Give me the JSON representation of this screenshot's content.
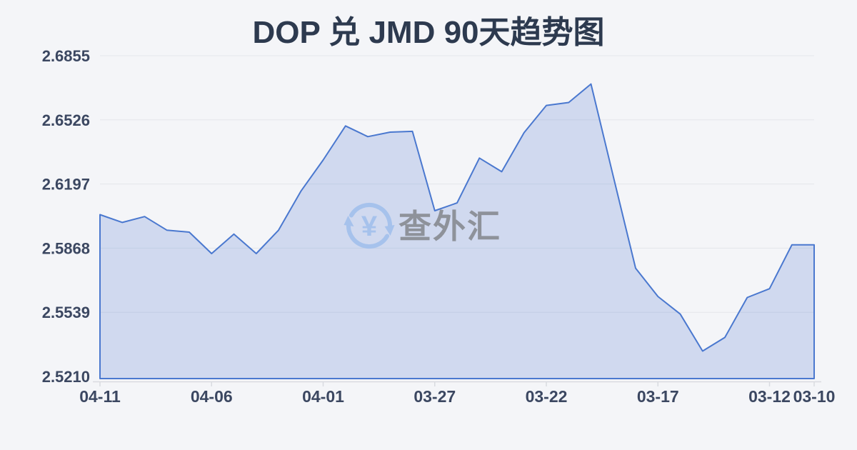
{
  "title": "DOP 兑 JMD 90天趋势图",
  "watermark": {
    "text": "查外汇",
    "symbol": "¥",
    "icon": "refresh-exchange-arrows-icon"
  },
  "colors": {
    "background": "#f4f5f8",
    "title": "#2d3a4f",
    "tick_label": "#3b4761",
    "grid": "#e3e6eb",
    "axis": "#d9dbe0",
    "line": "#4a78cf",
    "fill": "#d8e0f3",
    "fill_rgba": "rgba(99,137,212,0.25)",
    "watermark_icon": "#a6c2ec",
    "watermark_text": "#8e929a"
  },
  "chart_data": {
    "type": "area",
    "title": "DOP 兑 JMD 90天趋势图",
    "x": [
      "04-11",
      "04-10",
      "04-09",
      "04-08",
      "04-07",
      "04-06",
      "04-05",
      "04-04",
      "04-03",
      "04-02",
      "04-01",
      "03-31",
      "03-30",
      "03-29",
      "03-28",
      "03-27",
      "03-26",
      "03-25",
      "03-24",
      "03-23",
      "03-22",
      "03-21",
      "03-20",
      "03-19",
      "03-18",
      "03-17",
      "03-16",
      "03-15",
      "03-14",
      "03-13",
      "03-12",
      "03-11",
      "03-10"
    ],
    "values": [
      2.604,
      2.6,
      2.603,
      2.596,
      2.595,
      2.584,
      2.594,
      2.584,
      2.596,
      2.616,
      2.632,
      2.6495,
      2.644,
      2.6463,
      2.6467,
      2.606,
      2.61,
      2.633,
      2.626,
      2.646,
      2.66,
      2.6615,
      2.671,
      2.6235,
      2.5765,
      2.562,
      2.553,
      2.534,
      2.541,
      2.5615,
      2.566,
      2.5885,
      2.5885
    ],
    "x_tick_indices": [
      0,
      5,
      10,
      15,
      20,
      25,
      30,
      32
    ],
    "x_tick_labels": [
      "04-11",
      "04-06",
      "04-01",
      "03-27",
      "03-22",
      "03-17",
      "03-12",
      "03-10"
    ],
    "y_tick_labels": [
      "2.6855",
      "2.6526",
      "2.6197",
      "2.5868",
      "2.5539",
      "2.5210"
    ],
    "y_tick_values": [
      2.6855,
      2.6526,
      2.6197,
      2.5868,
      2.5539,
      2.521
    ],
    "ylim": [
      2.521,
      2.6855
    ],
    "time_order": "newest-first",
    "grid": "horizontal",
    "legend": "none"
  }
}
